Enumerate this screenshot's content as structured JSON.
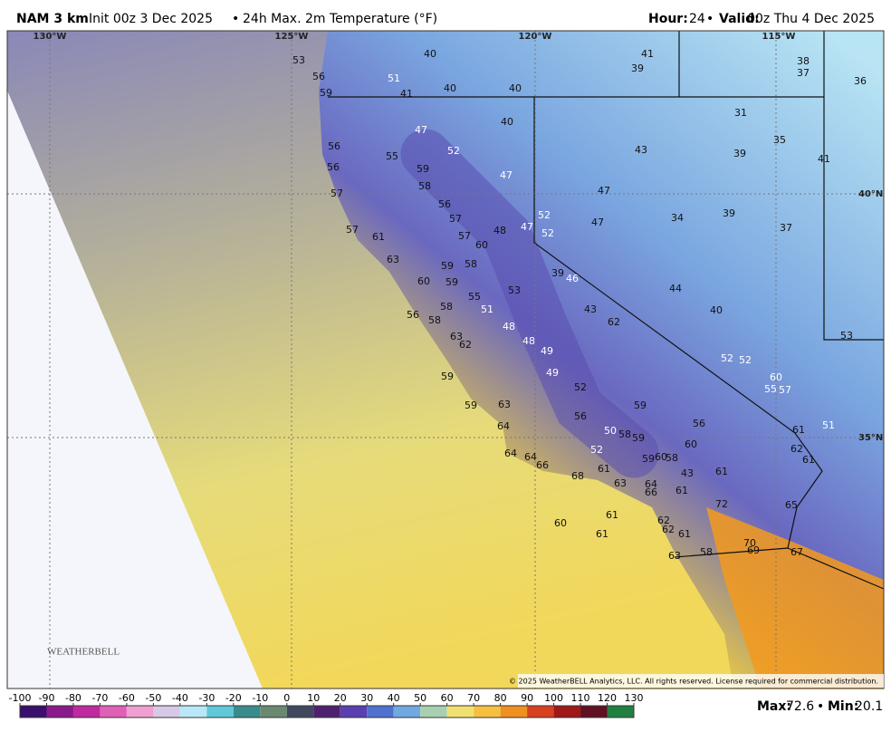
{
  "header": {
    "model": "NAM 3 km",
    "init": "Init 00z 3 Dec 2025",
    "separator": "•",
    "field": "24h Max. 2m Temperature (°F)",
    "hour_label": "Hour:",
    "hour": 24,
    "valid_label": "Valid:",
    "valid": "00z Thu 4 Dec 2025"
  },
  "map": {
    "lon_labels": [
      "130°W",
      "125°W",
      "120°W",
      "115°W"
    ],
    "lat_labels": [
      "40°N",
      "35°N"
    ],
    "temperatures": [
      53,
      56,
      59,
      51,
      41,
      40,
      40,
      40,
      41,
      39,
      38,
      37,
      36,
      40,
      31,
      47,
      52,
      43,
      39,
      35,
      41,
      56,
      55,
      56,
      59,
      47,
      58,
      47,
      57,
      56,
      57,
      52,
      47,
      34,
      39,
      37,
      57,
      61,
      57,
      60,
      48,
      47,
      52,
      63,
      59,
      58,
      39,
      46,
      60,
      59,
      55,
      53,
      44,
      58,
      51,
      43,
      62,
      40,
      56,
      58,
      48,
      63,
      62,
      48,
      49,
      53,
      52,
      52,
      59,
      49,
      60,
      55,
      57,
      52,
      59,
      63,
      59,
      56,
      56,
      61,
      51,
      64,
      50,
      58,
      59,
      60,
      62,
      61,
      64,
      64,
      52,
      59,
      60,
      58,
      66,
      68,
      61,
      43,
      61,
      63,
      64,
      66,
      61,
      72,
      65,
      60,
      61,
      62,
      62,
      61,
      61,
      70,
      69,
      63,
      58,
      67
    ],
    "logo": "WEATHERBELL",
    "copyright": "© 2025 WeatherBELL Analytics, LLC. All rights reserved. License required for commercial distribution."
  },
  "colorbar": {
    "ticks": [
      -100,
      -90,
      -80,
      -70,
      -60,
      -50,
      -40,
      -30,
      -20,
      -10,
      0,
      10,
      20,
      30,
      40,
      50,
      60,
      70,
      80,
      90,
      100,
      110,
      120,
      130
    ]
  },
  "footer": {
    "max_label": "Max:",
    "max": 72.6,
    "separator": "•",
    "min_label": "Min:",
    "min": 20.1
  }
}
